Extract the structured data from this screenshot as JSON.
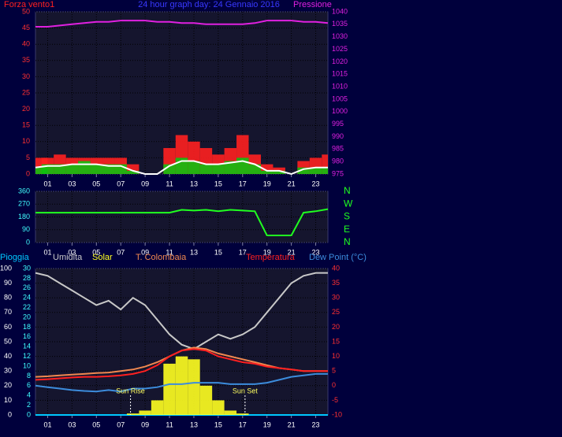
{
  "chart_data": [
    {
      "type": "line",
      "title": "24 hour graph day:  24 Gennaio 2016",
      "title_color": "#3838ff",
      "x": [
        0,
        1,
        2,
        3,
        4,
        5,
        6,
        7,
        8,
        9,
        10,
        11,
        12,
        13,
        14,
        15,
        16,
        17,
        18,
        19,
        20,
        21,
        22,
        23,
        24
      ],
      "xlim": [
        0,
        24
      ],
      "xticks": [
        {
          "value": 1,
          "label": "01"
        },
        {
          "value": 3,
          "label": "03"
        },
        {
          "value": 5,
          "label": "05"
        },
        {
          "value": 7,
          "label": "07"
        },
        {
          "value": 9,
          "label": "09"
        },
        {
          "value": 11,
          "label": "11"
        },
        {
          "value": 13,
          "label": "13"
        },
        {
          "value": 15,
          "label": "15"
        },
        {
          "value": 17,
          "label": "17"
        },
        {
          "value": 19,
          "label": "19"
        },
        {
          "value": 21,
          "label": "21"
        },
        {
          "value": 23,
          "label": "23"
        }
      ],
      "ylim": [
        0,
        50
      ],
      "yticks": [
        0,
        5,
        10,
        15,
        20,
        25,
        30,
        35,
        40,
        45,
        50
      ],
      "ytick_color": "#ff3030",
      "y2lim": [
        975,
        1040
      ],
      "y2ticks": [
        975,
        980,
        985,
        990,
        995,
        1000,
        1005,
        1010,
        1015,
        1020,
        1025,
        1030,
        1035,
        1040
      ],
      "y2tick_color": "#e020e0",
      "grid": true,
      "series": [
        {
          "name": "Forza vento1",
          "color": "#ff2020",
          "type": "bar",
          "values": [
            5,
            5,
            6,
            5,
            5,
            5,
            5,
            5,
            3,
            0,
            0,
            8,
            12,
            10,
            8,
            6,
            8,
            12,
            6,
            3,
            2,
            0,
            4,
            5,
            6
          ]
        },
        {
          "color": "#10c010",
          "type": "bar",
          "values": [
            2,
            3,
            3,
            3,
            4,
            3,
            3,
            3,
            1,
            0,
            0,
            3,
            5,
            4,
            3,
            3,
            4,
            5,
            3,
            1,
            1,
            0,
            2,
            2,
            2
          ]
        },
        {
          "color": "#ffffff",
          "type": "line",
          "values": [
            2,
            2.5,
            2.5,
            3,
            3,
            3,
            2.5,
            2.5,
            1,
            0,
            0,
            2.5,
            4,
            4,
            3,
            3,
            3.5,
            4,
            3,
            1,
            1,
            0,
            1.5,
            2,
            2
          ]
        },
        {
          "name": "Pressione",
          "color": "#e020e0",
          "type": "line",
          "axis": "y2",
          "values": [
            1034,
            1034,
            1034.5,
            1035,
            1035.5,
            1036,
            1036,
            1036.5,
            1036.5,
            1036.5,
            1036,
            1036,
            1035.5,
            1035.5,
            1035,
            1035,
            1035,
            1035,
            1035.5,
            1036.5,
            1036.5,
            1036.5,
            1036,
            1036,
            1035.5
          ]
        }
      ]
    },
    {
      "type": "line",
      "x": [
        0,
        1,
        2,
        3,
        4,
        5,
        6,
        7,
        8,
        9,
        10,
        11,
        12,
        13,
        14,
        15,
        16,
        17,
        18,
        19,
        20,
        21,
        22,
        23,
        24
      ],
      "xlim": [
        0,
        24
      ],
      "xticks": [
        {
          "value": 1,
          "label": "01"
        },
        {
          "value": 3,
          "label": "03"
        },
        {
          "value": 5,
          "label": "05"
        },
        {
          "value": 7,
          "label": "07"
        },
        {
          "value": 9,
          "label": "09"
        },
        {
          "value": 11,
          "label": "11"
        },
        {
          "value": 13,
          "label": "13"
        },
        {
          "value": 15,
          "label": "15"
        },
        {
          "value": 17,
          "label": "17"
        },
        {
          "value": 19,
          "label": "19"
        },
        {
          "value": 21,
          "label": "21"
        },
        {
          "value": 23,
          "label": "23"
        }
      ],
      "ylim": [
        0,
        360
      ],
      "yticks": [
        0,
        90,
        180,
        270,
        360
      ],
      "ytick_color": "#40ffff",
      "y2lim": [
        0,
        360
      ],
      "y2ticks": [
        {
          "value": 0,
          "label": "N"
        },
        {
          "value": 90,
          "label": "E"
        },
        {
          "value": 180,
          "label": "S"
        },
        {
          "value": 270,
          "label": "W"
        },
        {
          "value": 360,
          "label": "N"
        }
      ],
      "y2tick_color": "#20ff20",
      "grid": true,
      "series": [
        {
          "color": "#20ff20",
          "type": "line",
          "values": [
            210,
            210,
            210,
            210,
            210,
            210,
            210,
            210,
            210,
            210,
            210,
            210,
            230,
            225,
            230,
            220,
            230,
            225,
            220,
            50,
            50,
            50,
            210,
            220,
            235
          ]
        }
      ]
    },
    {
      "type": "line",
      "x": [
        0,
        1,
        2,
        3,
        4,
        5,
        6,
        7,
        8,
        9,
        10,
        11,
        12,
        13,
        14,
        15,
        16,
        17,
        18,
        19,
        20,
        21,
        22,
        23,
        24
      ],
      "xlim": [
        0,
        24
      ],
      "xticks": [
        {
          "value": 1,
          "label": "01"
        },
        {
          "value": 3,
          "label": "03"
        },
        {
          "value": 5,
          "label": "05"
        },
        {
          "value": 7,
          "label": "07"
        },
        {
          "value": 9,
          "label": "09"
        },
        {
          "value": 11,
          "label": "11"
        },
        {
          "value": 13,
          "label": "13"
        },
        {
          "value": 15,
          "label": "15"
        },
        {
          "value": 17,
          "label": "17"
        },
        {
          "value": 19,
          "label": "19"
        },
        {
          "value": 21,
          "label": "21"
        },
        {
          "value": 23,
          "label": "23"
        }
      ],
      "ylim": [
        0,
        100
      ],
      "yticks": [
        0,
        10,
        20,
        30,
        40,
        50,
        60,
        70,
        80,
        90,
        100
      ],
      "ytick_color": "#ffffff",
      "y3lim": [
        0,
        30
      ],
      "y3ticks": [
        0,
        2,
        4,
        6,
        8,
        10,
        12,
        14,
        16,
        18,
        20,
        22,
        24,
        26,
        28,
        30
      ],
      "y3tick_color": "#40ffff",
      "y2lim": [
        -10,
        40
      ],
      "y2ticks": [
        -10,
        -5,
        0,
        5,
        10,
        15,
        20,
        25,
        30,
        35,
        40
      ],
      "y2tick_color": "#ff3030",
      "grid": true,
      "series": [
        {
          "name": "Pioggia",
          "color": "#00c8ff",
          "type": "line",
          "axis": "y3",
          "values": [
            0,
            0,
            0,
            0,
            0,
            0,
            0,
            0,
            0,
            0,
            0,
            0,
            0,
            0,
            0,
            0,
            0,
            0,
            0,
            0,
            0,
            0,
            0,
            0,
            0
          ]
        },
        {
          "name": "Umidita",
          "color": "#c8c8c8",
          "type": "line",
          "values": [
            97,
            95,
            90,
            85,
            80,
            75,
            78,
            72,
            80,
            75,
            65,
            55,
            48,
            45,
            50,
            55,
            52,
            55,
            60,
            70,
            80,
            90,
            95,
            97,
            97
          ]
        },
        {
          "name": "Solar",
          "color": "#ffff20",
          "type": "bar",
          "values": [
            0,
            0,
            0,
            0,
            0,
            0,
            0,
            0,
            1,
            3,
            10,
            35,
            40,
            38,
            20,
            10,
            3,
            1,
            0,
            0,
            0,
            0,
            0,
            0,
            0
          ]
        },
        {
          "name": "T. Colombaia",
          "color": "#f08850",
          "type": "line",
          "axis": "y2",
          "values": [
            3,
            3.2,
            3.5,
            3.8,
            4,
            4.3,
            4.5,
            5,
            5.5,
            6.5,
            8,
            10,
            12,
            13,
            12.5,
            11,
            10,
            9,
            8,
            7,
            6,
            5.5,
            5,
            5,
            5
          ]
        },
        {
          "name": "Temperatura",
          "color": "#ff2020",
          "type": "line",
          "axis": "y2",
          "values": [
            2,
            2.2,
            2.5,
            2.8,
            3,
            3,
            3.2,
            3.5,
            4,
            5,
            7,
            10,
            12,
            12.5,
            12,
            10,
            9,
            8,
            7.5,
            6.5,
            6,
            5.5,
            5,
            5,
            5
          ]
        },
        {
          "name": "Dew Point (°C)",
          "color": "#3c8cdc",
          "type": "line",
          "axis": "y2",
          "values": [
            0,
            -0.5,
            -1,
            -1.5,
            -1.8,
            -2,
            -1.5,
            -2,
            -1,
            -1,
            -0.5,
            0.5,
            0.5,
            1,
            1,
            1,
            0.5,
            0.5,
            0.5,
            1,
            2,
            3,
            3.5,
            4,
            4
          ]
        }
      ],
      "annotations": [
        {
          "text": "Sun Rise",
          "x": 7.8
        },
        {
          "text": "Sun Set",
          "x": 17.2
        }
      ]
    }
  ]
}
